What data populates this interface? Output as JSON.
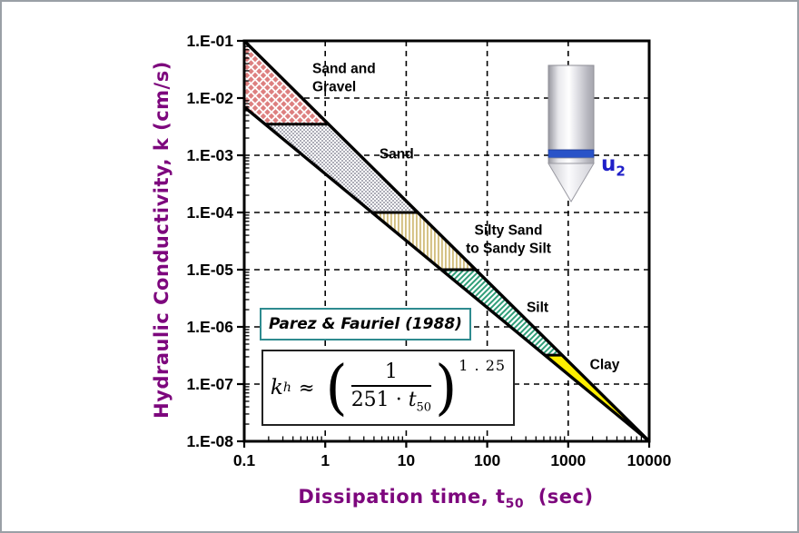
{
  "window": {
    "bg": "#ffffff",
    "border": "#9aa0a6"
  },
  "chart_data": {
    "type": "area",
    "title": "",
    "xlabel": "Dissipation time, t50 (sec)",
    "xlabel_parts": {
      "pre": "Dissipation time, t",
      "sub": "50",
      "post": "(sec)"
    },
    "ylabel": "Hydraulic Conductivity, k (cm/s)",
    "xscale": "log",
    "yscale": "log",
    "xlim": [
      0.1,
      10000
    ],
    "ylim": [
      1e-08,
      0.1
    ],
    "grid": "dashed",
    "legend": "none",
    "x_ticks": [
      {
        "v": 0.1,
        "label": "0.1"
      },
      {
        "v": 1,
        "label": "1"
      },
      {
        "v": 10,
        "label": "10"
      },
      {
        "v": 100,
        "label": "100"
      },
      {
        "v": 1000,
        "label": "1000"
      },
      {
        "v": 10000,
        "label": "10000"
      }
    ],
    "y_ticks": [
      {
        "v": 0.1,
        "label": "1.E-01"
      },
      {
        "v": 0.01,
        "label": "1.E-02"
      },
      {
        "v": 0.001,
        "label": "1.E-03"
      },
      {
        "v": 0.0001,
        "label": "1.E-04"
      },
      {
        "v": 1e-05,
        "label": "1.E-05"
      },
      {
        "v": 1e-06,
        "label": "1.E-06"
      },
      {
        "v": 1e-07,
        "label": "1.E-07"
      },
      {
        "v": 1e-08,
        "label": "1.E-08"
      }
    ],
    "band": {
      "upper": {
        "t": [
          0.1,
          10000
        ],
        "k": [
          0.1,
          1e-08
        ]
      },
      "lower": {
        "t": [
          0.1,
          10000
        ],
        "k": [
          0.007,
          1e-08
        ]
      }
    },
    "zones": [
      {
        "name": "sand-and-gravel",
        "label_lines": [
          "Sand and",
          "Gravel"
        ],
        "k_top": 0.1,
        "k_bottom": 0.0035,
        "pattern": "pink-diamonds",
        "label_t": 0.693,
        "label_k": 0.0232,
        "align": "left",
        "clamp_left": true
      },
      {
        "name": "sand",
        "label_lines": [
          "Sand"
        ],
        "k_top": 0.0035,
        "k_bottom": 0.0001,
        "pattern": "gray-dots",
        "label_t": 7.6,
        "label_k": 0.00108,
        "align": "center"
      },
      {
        "name": "silty-sand-to-sandy-silt",
        "label_lines": [
          "Silty Sand",
          "to Sandy Silt"
        ],
        "k_top": 0.0001,
        "k_bottom": 1e-05,
        "pattern": "tan-vlines",
        "label_t": 183,
        "label_k": 3.47e-05,
        "align": "center"
      },
      {
        "name": "silt",
        "label_lines": [
          "Silt"
        ],
        "k_top": 1e-05,
        "k_bottom": 3.2e-07,
        "pattern": "green-hatch",
        "label_t": 418,
        "label_k": 2.24e-06,
        "align": "center"
      },
      {
        "name": "clay",
        "label_lines": [
          "Clay"
        ],
        "k_top": 3.2e-07,
        "k_bottom": 1e-08,
        "pattern": "yellow-solid",
        "label_t": 2824,
        "label_k": 2.23e-07,
        "align": "center"
      }
    ],
    "annotation": "Parez & Fauriel (1988)",
    "formula": {
      "lhs": "k",
      "lhs_sub": "h",
      "rel": "≈",
      "num": "1",
      "den": "251",
      "dot": "·",
      "den_var": "t",
      "den_sub": "50",
      "exp": "1 . 25"
    }
  },
  "cone": {
    "u_label": "u",
    "u_sub": "2"
  },
  "colors": {
    "title_purple": "#7d077d",
    "annotation_border": "#2e8b8f",
    "u2_blue": "#1f1fc8",
    "cone_band_blue": "#2953c8",
    "diamond_pink": "#dd7f7f",
    "dot_gray": "#3c3c55",
    "vline_tan": "#d2bd7d",
    "hatch_green": "#2e9e78",
    "clay_yellow": "#ffee00",
    "ink": "#000000"
  }
}
